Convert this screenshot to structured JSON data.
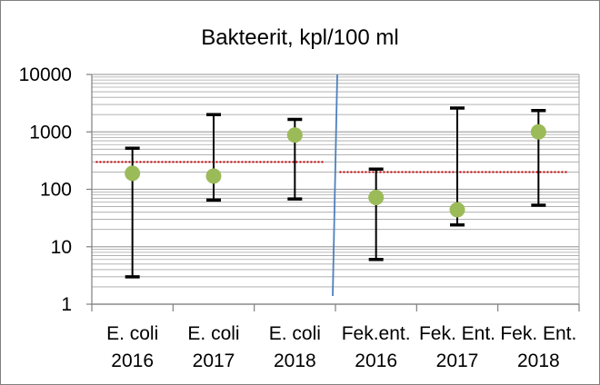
{
  "chart_data": {
    "type": "scatter",
    "title": "Bakteerit, kpl/100 ml",
    "xlabel": "",
    "ylabel": "",
    "y_scale": "log",
    "ylim": [
      1,
      10000
    ],
    "y_ticks": [
      "1",
      "10",
      "100",
      "1000",
      "10000"
    ],
    "grid": "horizontal minor (log)",
    "legend": "none",
    "categories": [
      [
        "E. coli",
        "2016"
      ],
      [
        "E. coli",
        "2017"
      ],
      [
        "E. coli",
        "2018"
      ],
      [
        "Fek.ent.",
        "2016"
      ],
      [
        "Fek. Ent.",
        "2017"
      ],
      [
        "Fek. Ent.",
        "2018"
      ]
    ],
    "series": [
      {
        "values": [
          190,
          170,
          880,
          72,
          44,
          1000
        ],
        "min": [
          3,
          65,
          68,
          6,
          24,
          53
        ],
        "max": [
          520,
          2000,
          1650,
          225,
          2600,
          2350
        ]
      }
    ],
    "reference_lines": [
      {
        "value": 300,
        "from_category": 0,
        "to_category": 2
      },
      {
        "value": 200,
        "from_category": 3,
        "to_category": 5
      }
    ],
    "colors": {
      "marker": "#9BBB59",
      "error_bar": "#000000",
      "reference": "#C00000",
      "divider": "#4F81BD",
      "grid": "#A6A6A6",
      "axis": "#808080"
    }
  }
}
